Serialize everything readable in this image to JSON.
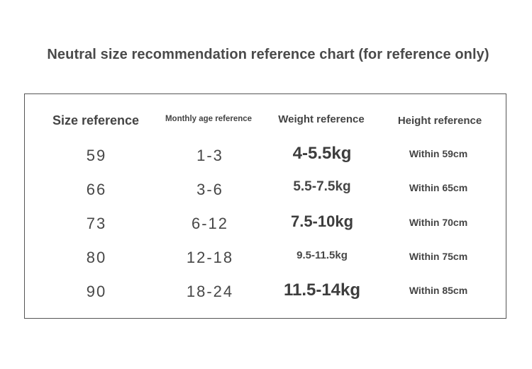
{
  "title": "Neutral size recommendation reference chart (for reference only)",
  "headers": {
    "size": "Size reference",
    "age": "Monthly age reference",
    "weight": "Weight reference",
    "height": "Height reference"
  },
  "rows": [
    {
      "size": "59",
      "age": "1-3",
      "weight": "4-5.5kg",
      "height": "Within 59cm"
    },
    {
      "size": "66",
      "age": "3-6",
      "weight": "5.5-7.5kg",
      "height": "Within 65cm"
    },
    {
      "size": "73",
      "age": "6-12",
      "weight": "7.5-10kg",
      "height": "Within 70cm"
    },
    {
      "size": "80",
      "age": "12-18",
      "weight": "9.5-11.5kg",
      "height": "Within 75cm"
    },
    {
      "size": "90",
      "age": "18-24",
      "weight": "11.5-14kg",
      "height": "Within 85cm"
    }
  ]
}
